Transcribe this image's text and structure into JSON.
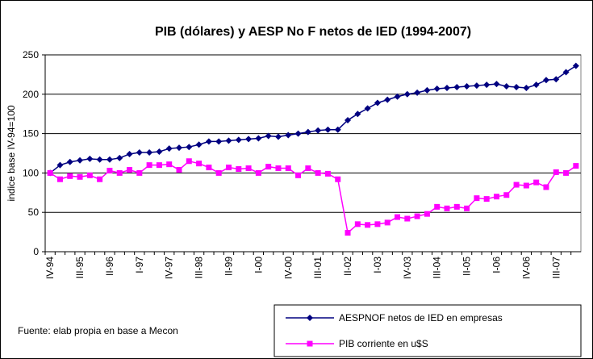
{
  "chart_data": {
    "type": "line",
    "title": "PIB (dólares) y AESP No F netos de IED (1994-2007)",
    "y_label": "indice base IV-94=100",
    "source": "Fuente: elab propia en base a Mecon",
    "categories": [
      "IV-94",
      null,
      null,
      "III-95",
      null,
      null,
      "II-96",
      null,
      null,
      "I-97",
      null,
      null,
      "IV-97",
      null,
      null,
      "III-98",
      null,
      null,
      "II-99",
      null,
      null,
      "I-00",
      null,
      null,
      "IV-00",
      null,
      null,
      "III-01",
      null,
      null,
      "II-02",
      null,
      null,
      "I-03",
      null,
      null,
      "IV-03",
      null,
      null,
      "III-04",
      null,
      null,
      "II-05",
      null,
      null,
      "I-06",
      null,
      null,
      "IV-06",
      null,
      null,
      "III-07",
      null,
      null
    ],
    "series": [
      {
        "name": "AESPNOF netos de IED en empresas",
        "color": "#000080",
        "marker": "diamond",
        "values": [
          100,
          110,
          114,
          116,
          118,
          117,
          117,
          119,
          124,
          126,
          126,
          127,
          131,
          132,
          133,
          136,
          140,
          140,
          141,
          142,
          143,
          144,
          147,
          146,
          148,
          150,
          152,
          154,
          155,
          155,
          167,
          175,
          182,
          189,
          193,
          197,
          200,
          202,
          205,
          207,
          208,
          209,
          210,
          211,
          212,
          213,
          210,
          209,
          208,
          212,
          218,
          219,
          228,
          236
        ]
      },
      {
        "name": "PIB corriente en u$S",
        "color": "#ff00ff",
        "marker": "square",
        "values": [
          100,
          92,
          96,
          95,
          97,
          92,
          103,
          100,
          104,
          100,
          110,
          110,
          111,
          104,
          115,
          112,
          107,
          100,
          107,
          105,
          106,
          100,
          108,
          106,
          106,
          97,
          106,
          100,
          99,
          92,
          24,
          35,
          34,
          35,
          37,
          44,
          42,
          45,
          48,
          57,
          55,
          57,
          55,
          68,
          67,
          70,
          72,
          85,
          84,
          88,
          82,
          101,
          100,
          109
        ]
      }
    ],
    "ylim": [
      0,
      250
    ],
    "yticks": [
      0,
      50,
      100,
      150,
      200,
      250
    ],
    "grid": true,
    "legend": "bottom-right"
  }
}
